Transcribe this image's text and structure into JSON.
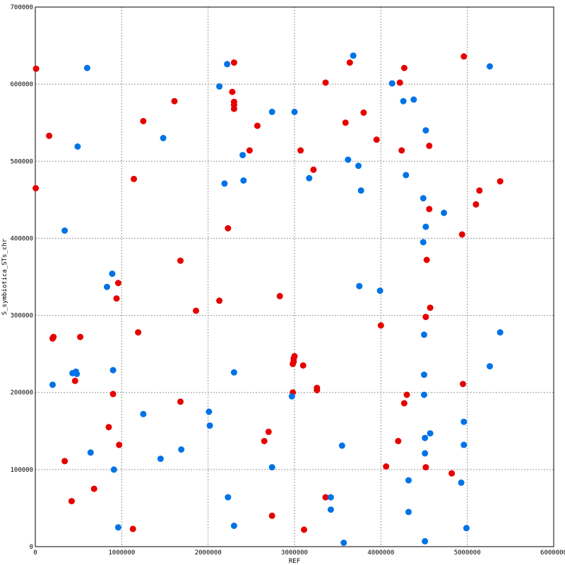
{
  "chart_data": {
    "type": "scatter",
    "title": "",
    "xlabel": "REF",
    "ylabel": "S_symbiotica_STs_chr",
    "xlim": [
      0,
      6000000
    ],
    "ylim": [
      0,
      700000
    ],
    "x_ticks": [
      0,
      1000000,
      2000000,
      3000000,
      4000000,
      5000000,
      6000000
    ],
    "y_ticks": [
      0,
      100000,
      200000,
      300000,
      400000,
      500000,
      600000,
      700000
    ],
    "x_tick_labels": [
      "0",
      "1000000",
      "2000000",
      "3000000",
      "4000000",
      "5000000",
      "6000000"
    ],
    "y_tick_labels": [
      "0",
      "100000",
      "200000",
      "300000",
      "400000",
      "500000",
      "600000",
      "700000"
    ],
    "grid": true,
    "series": [
      {
        "color": "#e60000",
        "points": [
          [
            9000,
            620000
          ],
          [
            5000,
            465000
          ],
          [
            160000,
            533000
          ],
          [
            200000,
            270000
          ],
          [
            210000,
            272000
          ],
          [
            340000,
            111000
          ],
          [
            420000,
            59000
          ],
          [
            460000,
            215000
          ],
          [
            520000,
            272000
          ],
          [
            680000,
            75000
          ],
          [
            850000,
            155000
          ],
          [
            900000,
            198000
          ],
          [
            940000,
            322000
          ],
          [
            960000,
            342000
          ],
          [
            970000,
            132000
          ],
          [
            1130000,
            23000
          ],
          [
            1140000,
            477000
          ],
          [
            1190000,
            278000
          ],
          [
            1250000,
            552000
          ],
          [
            1610000,
            578000
          ],
          [
            1680000,
            188000
          ],
          [
            1680000,
            371000
          ],
          [
            1860000,
            306000
          ],
          [
            2130000,
            319000
          ],
          [
            2230000,
            413000
          ],
          [
            2280000,
            590000
          ],
          [
            2300000,
            628000
          ],
          [
            2300000,
            577000
          ],
          [
            2300000,
            573000
          ],
          [
            2300000,
            568000
          ],
          [
            2570000,
            546000
          ],
          [
            2480000,
            514000
          ],
          [
            2650000,
            137000
          ],
          [
            2700000,
            149000
          ],
          [
            2740000,
            40000
          ],
          [
            2830000,
            325000
          ],
          [
            2980000,
            200000
          ],
          [
            2980000,
            237000
          ],
          [
            2990000,
            240000
          ],
          [
            2990000,
            244000
          ],
          [
            3000000,
            247000
          ],
          [
            3100000,
            235000
          ],
          [
            3070000,
            514000
          ],
          [
            3110000,
            22000
          ],
          [
            3220000,
            489000
          ],
          [
            3260000,
            203000
          ],
          [
            3260000,
            206000
          ],
          [
            3360000,
            64000
          ],
          [
            3360000,
            602000
          ],
          [
            3590000,
            550000
          ],
          [
            3640000,
            628000
          ],
          [
            3800000,
            563000
          ],
          [
            3950000,
            528000
          ],
          [
            4000000,
            287000
          ],
          [
            4060000,
            104000
          ],
          [
            4200000,
            137000
          ],
          [
            4220000,
            602000
          ],
          [
            4240000,
            514000
          ],
          [
            4270000,
            621000
          ],
          [
            4270000,
            186000
          ],
          [
            4300000,
            197000
          ],
          [
            4520000,
            103000
          ],
          [
            4520000,
            298000
          ],
          [
            4530000,
            372000
          ],
          [
            4560000,
            520000
          ],
          [
            4570000,
            310000
          ],
          [
            4560000,
            438000
          ],
          [
            4820000,
            95000
          ],
          [
            4950000,
            211000
          ],
          [
            4940000,
            405000
          ],
          [
            4960000,
            636000
          ],
          [
            5100000,
            444000
          ],
          [
            5140000,
            462000
          ],
          [
            5380000,
            474000
          ]
        ]
      },
      {
        "color": "#0073e6",
        "points": [
          [
            200000,
            210000
          ],
          [
            340000,
            410000
          ],
          [
            430000,
            225000
          ],
          [
            470000,
            227000
          ],
          [
            480000,
            224000
          ],
          [
            490000,
            519000
          ],
          [
            600000,
            621000
          ],
          [
            640000,
            122000
          ],
          [
            830000,
            337000
          ],
          [
            890000,
            354000
          ],
          [
            900000,
            229000
          ],
          [
            910000,
            100000
          ],
          [
            960000,
            25000
          ],
          [
            1250000,
            172000
          ],
          [
            1450000,
            114000
          ],
          [
            1480000,
            530000
          ],
          [
            1690000,
            126000
          ],
          [
            2010000,
            175000
          ],
          [
            2020000,
            157000
          ],
          [
            2130000,
            597000
          ],
          [
            2190000,
            471000
          ],
          [
            2220000,
            626000
          ],
          [
            2230000,
            64000
          ],
          [
            2300000,
            226000
          ],
          [
            2300000,
            27000
          ],
          [
            2400000,
            508000
          ],
          [
            2410000,
            475000
          ],
          [
            2740000,
            564000
          ],
          [
            2740000,
            103000
          ],
          [
            2970000,
            195000
          ],
          [
            3000000,
            564000
          ],
          [
            3170000,
            478000
          ],
          [
            3420000,
            64000
          ],
          [
            3420000,
            48000
          ],
          [
            3550000,
            131000
          ],
          [
            3570000,
            5000
          ],
          [
            3620000,
            502000
          ],
          [
            3680000,
            637000
          ],
          [
            3740000,
            494000
          ],
          [
            3750000,
            338000
          ],
          [
            3770000,
            462000
          ],
          [
            3990000,
            332000
          ],
          [
            4130000,
            601000
          ],
          [
            4260000,
            578000
          ],
          [
            4290000,
            482000
          ],
          [
            4320000,
            86000
          ],
          [
            4320000,
            45000
          ],
          [
            4380000,
            580000
          ],
          [
            4490000,
            452000
          ],
          [
            4490000,
            395000
          ],
          [
            4500000,
            275000
          ],
          [
            4500000,
            223000
          ],
          [
            4500000,
            197000
          ],
          [
            4510000,
            141000
          ],
          [
            4510000,
            121000
          ],
          [
            4510000,
            7000
          ],
          [
            4520000,
            415000
          ],
          [
            4520000,
            540000
          ],
          [
            4570000,
            147000
          ],
          [
            4730000,
            433000
          ],
          [
            4930000,
            83000
          ],
          [
            4960000,
            162000
          ],
          [
            4960000,
            132000
          ],
          [
            4990000,
            24000
          ],
          [
            5260000,
            623000
          ],
          [
            5260000,
            234000
          ],
          [
            5380000,
            278000
          ]
        ]
      }
    ]
  }
}
